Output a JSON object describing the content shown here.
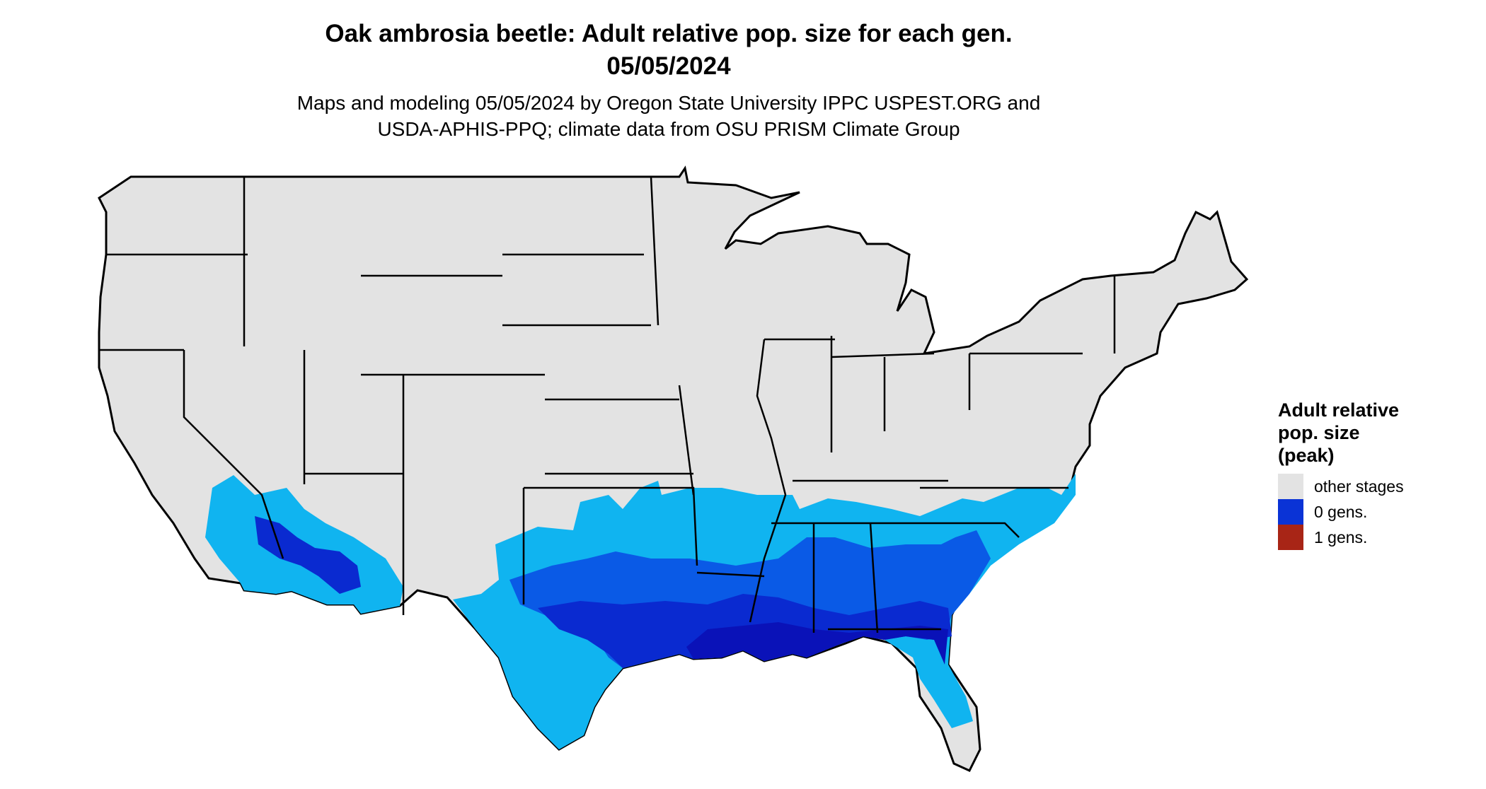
{
  "title": {
    "line1": "Oak ambrosia beetle: Adult relative pop. size for each gen.",
    "line2": "05/05/2024"
  },
  "subtitle": {
    "line1": "Maps and modeling 05/05/2024 by Oregon State University IPPC USPEST.ORG and",
    "line2": "USDA-APHIS-PPQ; climate data from OSU PRISM Climate Group"
  },
  "legend": {
    "title_lines": [
      "Adult relative",
      "pop. size",
      "(peak)"
    ],
    "items": [
      {
        "label": "other stages",
        "color": "#e3e3e3"
      },
      {
        "label": "0 gens.",
        "color": "#0a33d6"
      },
      {
        "label": "1 gens.",
        "color": "#a82516"
      }
    ]
  },
  "map": {
    "region": "contiguous United States",
    "base_color": "#e3e3e3",
    "border_color": "#000000",
    "shade_colors": {
      "light": "#10b4f0",
      "medium": "#0a5ae6",
      "dark": "#0a2ad0",
      "darkest": "#0a12b8"
    }
  }
}
